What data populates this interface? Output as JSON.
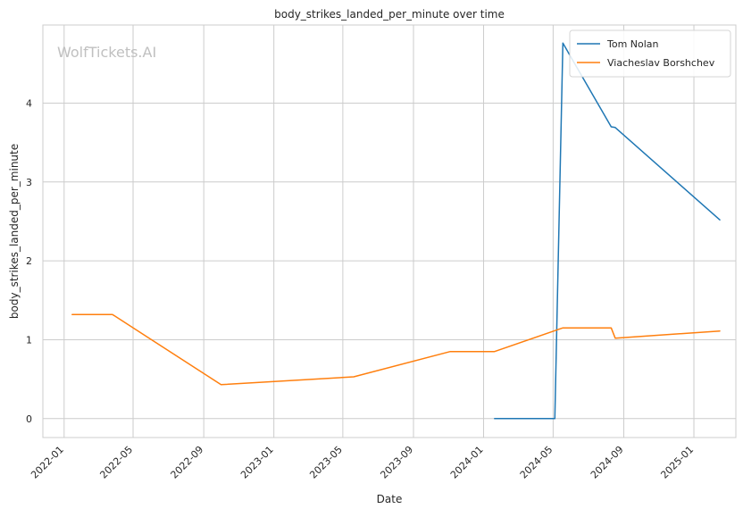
{
  "chart_data": {
    "type": "line",
    "title": "body_strikes_landed_per_minute over time",
    "xlabel": "Date",
    "ylabel": "body_strikes_landed_per_minute",
    "watermark": "WolfTickets.AI",
    "x_ticks": [
      "2022-01",
      "2022-05",
      "2022-09",
      "2023-01",
      "2023-05",
      "2023-09",
      "2024-01",
      "2024-05",
      "2024-09",
      "2025-01"
    ],
    "y_ticks": [
      0,
      1,
      2,
      3,
      4
    ],
    "xlim": [
      "2021-11-25",
      "2025-03-15"
    ],
    "ylim": [
      -0.24,
      4.99
    ],
    "grid": true,
    "legend_position": "top-right",
    "series": [
      {
        "name": "Tom Nolan",
        "color": "#1f77b4",
        "points": [
          {
            "x": "2024-01-20",
            "y": 0.0
          },
          {
            "x": "2024-05-04",
            "y": 0.0
          },
          {
            "x": "2024-05-18",
            "y": 4.76
          },
          {
            "x": "2024-08-10",
            "y": 3.7
          },
          {
            "x": "2024-08-17",
            "y": 3.69
          },
          {
            "x": "2025-02-15",
            "y": 2.52
          }
        ]
      },
      {
        "name": "Viacheslav Borshchev",
        "color": "#ff7f0e",
        "points": [
          {
            "x": "2022-01-15",
            "y": 1.32
          },
          {
            "x": "2022-03-26",
            "y": 1.32
          },
          {
            "x": "2022-10-01",
            "y": 0.43
          },
          {
            "x": "2023-05-20",
            "y": 0.53
          },
          {
            "x": "2023-11-04",
            "y": 0.85
          },
          {
            "x": "2024-01-20",
            "y": 0.85
          },
          {
            "x": "2024-05-18",
            "y": 1.15
          },
          {
            "x": "2024-08-10",
            "y": 1.15
          },
          {
            "x": "2024-08-17",
            "y": 1.02
          },
          {
            "x": "2025-02-15",
            "y": 1.11
          }
        ]
      }
    ]
  }
}
